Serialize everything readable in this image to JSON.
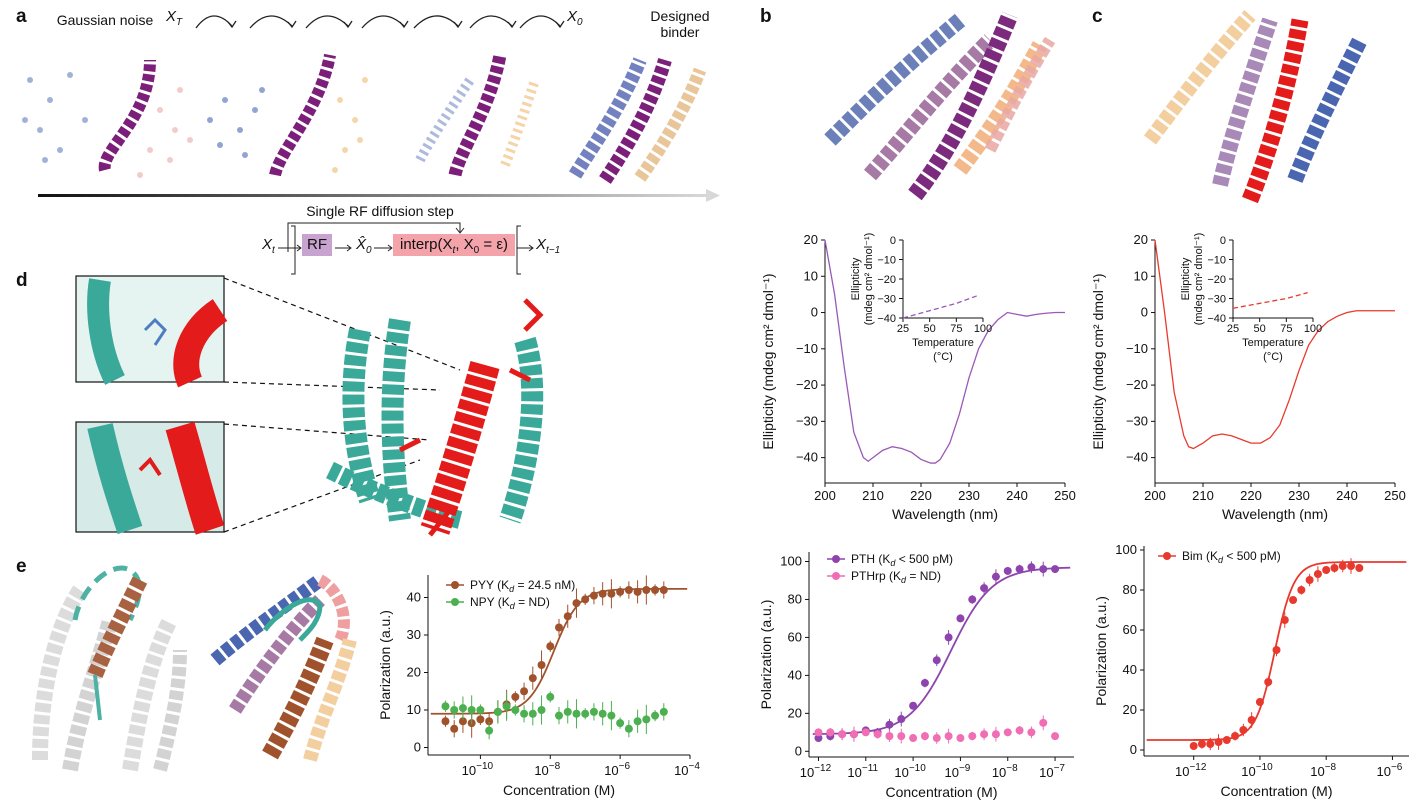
{
  "panels": {
    "a": "a",
    "b": "b",
    "c": "c",
    "d": "d",
    "e": "e"
  },
  "a": {
    "gaussian_noise": "Gaussian noise",
    "designed_binder": "Designed binder",
    "xt_label": "X",
    "xt_sub": "T",
    "x0_label": "X",
    "x0_sub": "0",
    "step_title": "Single RF diffusion step",
    "step_xt": "X",
    "step_xt_sub": "t",
    "rf_box": "RF",
    "x0hat": "X̂",
    "x0hat_sub": "0",
    "interp_box": "interp(X",
    "interp_sub": "t",
    "interp_rest": ", X",
    "interp_sub2": "0",
    "interp_end": " = ε)",
    "xt1": "X",
    "xt1_sub": "t−1",
    "colors": {
      "rf": "#c9a3cf",
      "interp": "#f4a3ab"
    }
  },
  "chart_data": [
    {
      "id": "cd_b",
      "type": "line",
      "title": "",
      "xlabel": "Wavelength (nm)",
      "ylabel": "Ellipticity (mdeg cm² dmol⁻¹)",
      "xlim": [
        200,
        250
      ],
      "ylim": [
        -47,
        20
      ],
      "xticks": [
        200,
        210,
        220,
        230,
        240,
        250
      ],
      "yticks": [
        20,
        10,
        0,
        -10,
        -20,
        -30,
        -40
      ],
      "color": "#9b59b6",
      "x": [
        200,
        202,
        204,
        206,
        208,
        209,
        210,
        212,
        214,
        216,
        218,
        220,
        222,
        223,
        224,
        226,
        228,
        230,
        232,
        234,
        236,
        238,
        240,
        242,
        244,
        246,
        248,
        250
      ],
      "y": [
        20,
        5,
        -15,
        -33,
        -40,
        -41,
        -40,
        -38,
        -37,
        -37.5,
        -38.5,
        -40.5,
        -41.5,
        -41.5,
        -40.5,
        -36,
        -28,
        -18,
        -10,
        -5,
        -2,
        0,
        -0.5,
        -1,
        -0.5,
        -0.2,
        0,
        0
      ]
    },
    {
      "id": "cd_b_inset",
      "type": "line",
      "title": "",
      "xlabel": "Temperature (°C)",
      "ylabel": "Ellipticity (mdeg cm² dmol⁻¹)",
      "xlim": [
        25,
        100
      ],
      "ylim": [
        -40,
        0
      ],
      "xticks": [
        25,
        50,
        75,
        100
      ],
      "yticks": [
        0,
        -10,
        -20,
        -30,
        -40
      ],
      "color": "#9b59b6",
      "x": [
        25,
        35,
        45,
        55,
        65,
        75,
        85,
        95
      ],
      "y": [
        -40,
        -38.5,
        -37,
        -35.5,
        -34,
        -32.5,
        -30.5,
        -28.5
      ]
    },
    {
      "id": "cd_c",
      "type": "line",
      "title": "",
      "xlabel": "Wavelength (nm)",
      "ylabel": "Ellipticity (mdeg cm² dmol⁻¹)",
      "xlim": [
        200,
        250
      ],
      "ylim": [
        -47,
        20
      ],
      "xticks": [
        200,
        210,
        220,
        230,
        240,
        250
      ],
      "yticks": [
        20,
        10,
        0,
        -10,
        -20,
        -30,
        -40
      ],
      "color": "#e8392e",
      "x": [
        200,
        202,
        204,
        206,
        207,
        208,
        210,
        212,
        214,
        216,
        218,
        220,
        222,
        224,
        226,
        228,
        230,
        232,
        234,
        236,
        238,
        240,
        242,
        244,
        246,
        248,
        250
      ],
      "y": [
        20,
        0,
        -22,
        -34,
        -37,
        -37.5,
        -36,
        -34,
        -33.5,
        -34,
        -35,
        -36,
        -36,
        -34.5,
        -31,
        -24,
        -16,
        -9,
        -5,
        -2.5,
        -1,
        0,
        0.5,
        0.5,
        0.5,
        0.5,
        0.5
      ]
    },
    {
      "id": "cd_c_inset",
      "type": "line",
      "title": "",
      "xlabel": "Temperature (°C)",
      "ylabel": "Ellipticity (mdeg cm² dmol⁻¹)",
      "xlim": [
        25,
        100
      ],
      "ylim": [
        -40,
        0
      ],
      "xticks": [
        25,
        50,
        75,
        100
      ],
      "yticks": [
        0,
        -10,
        -20,
        -30,
        -40
      ],
      "color": "#e8392e",
      "x": [
        25,
        35,
        45,
        55,
        65,
        75,
        85,
        95
      ],
      "y": [
        -35,
        -34,
        -33,
        -32,
        -31,
        -30,
        -28.5,
        -27
      ]
    },
    {
      "id": "fp_e",
      "type": "scatter",
      "title": "",
      "xlabel": "Concentration (M)",
      "ylabel": "Polarization (a.u.)",
      "xlim": [
        -11.5,
        -4
      ],
      "ylim": [
        -2,
        46
      ],
      "xticks_exp": [
        -10,
        -8,
        -6,
        -4
      ],
      "yticks": [
        0,
        10,
        20,
        30,
        40
      ],
      "series": [
        {
          "name": "PYY",
          "legend": "PYY (K",
          "legend_sub": "d",
          "legend_tail": " = 24.5 nM)",
          "color": "#a0522d",
          "x": [
            -11.0,
            -10.75,
            -10.5,
            -10.25,
            -10.0,
            -9.75,
            -9.5,
            -9.25,
            -9.0,
            -8.75,
            -8.5,
            -8.25,
            -8.0,
            -7.75,
            -7.5,
            -7.25,
            -7.0,
            -6.75,
            -6.5,
            -6.25,
            -6.0,
            -5.75,
            -5.5,
            -5.25,
            -5.0,
            -4.75
          ],
          "y": [
            7,
            5,
            7,
            6.5,
            7.5,
            7,
            9.5,
            11.5,
            13.5,
            15,
            18.5,
            22,
            27,
            32,
            35,
            38.5,
            39.5,
            40.5,
            41,
            41,
            41.5,
            42,
            41.5,
            42,
            42,
            42
          ],
          "fit": true,
          "fit_bottom": 9,
          "fit_top": 42.3,
          "fit_ec50": -7.9,
          "fit_hill": 1.2
        },
        {
          "name": "NPY",
          "legend": "NPY (K",
          "legend_sub": "d",
          "legend_tail": " = ND)",
          "color": "#4caf50",
          "x": [
            -11.0,
            -10.75,
            -10.5,
            -10.25,
            -10.0,
            -9.75,
            -9.5,
            -9.25,
            -9.0,
            -8.75,
            -8.5,
            -8.25,
            -8.0,
            -7.75,
            -7.5,
            -7.25,
            -7.0,
            -6.75,
            -6.5,
            -6.25,
            -6.0,
            -5.75,
            -5.5,
            -5.25,
            -5.0,
            -4.75
          ],
          "y": [
            11,
            10,
            10.5,
            10,
            10,
            4.5,
            9.5,
            11,
            10,
            9,
            9,
            10,
            13.5,
            8.5,
            9.5,
            9,
            9,
            9.5,
            9,
            8.5,
            6.5,
            5,
            7,
            7.5,
            8.5,
            9.5
          ],
          "fit": false
        }
      ]
    },
    {
      "id": "fp_pth",
      "type": "scatter",
      "title": "",
      "xlabel": "Concentration (M)",
      "ylabel": "Polarization (a.u.)",
      "xlim": [
        -12.2,
        -6.6
      ],
      "ylim": [
        -3,
        105
      ],
      "xticks_exp": [
        -12,
        -11,
        -10,
        -9,
        -8,
        -7
      ],
      "yticks": [
        0,
        20,
        40,
        60,
        80,
        100
      ],
      "series": [
        {
          "name": "PTH",
          "legend": "PTH (K",
          "legend_sub": "d",
          "legend_tail": " < 500 pM)",
          "color": "#8e44ad",
          "x": [
            -12.0,
            -11.75,
            -11.5,
            -11.25,
            -11.0,
            -10.75,
            -10.5,
            -10.25,
            -10.0,
            -9.75,
            -9.5,
            -9.25,
            -9.0,
            -8.75,
            -8.5,
            -8.25,
            -8.0,
            -7.75,
            -7.5,
            -7.25,
            -7.0
          ],
          "y": [
            7,
            8,
            9,
            9,
            11,
            10,
            14,
            17,
            24,
            36,
            48,
            60,
            70,
            80,
            86,
            92,
            95,
            96,
            97,
            96,
            96
          ],
          "fit": true,
          "fit_bottom": 9,
          "fit_top": 97,
          "fit_ec50": -9.2,
          "fit_hill": 1.0
        },
        {
          "name": "PTHrp",
          "legend": "PTHrp (K",
          "legend_sub": "d",
          "legend_tail": " = ND)",
          "color": "#f06eb4",
          "x": [
            -12.0,
            -11.75,
            -11.5,
            -11.25,
            -11.0,
            -10.75,
            -10.5,
            -10.25,
            -10.0,
            -9.75,
            -9.5,
            -9.25,
            -9.0,
            -8.75,
            -8.5,
            -8.25,
            -8.0,
            -7.75,
            -7.5,
            -7.25,
            -7.0
          ],
          "y": [
            10,
            10,
            9,
            9,
            10,
            9,
            8,
            8,
            7,
            8,
            7,
            8,
            7,
            8,
            9,
            9,
            10,
            11,
            10,
            15,
            8
          ],
          "fit": false
        }
      ]
    },
    {
      "id": "fp_bim",
      "type": "scatter",
      "title": "",
      "xlabel": "Concentration (M)",
      "ylabel": "Polarization (a.u.)",
      "xlim": [
        -13.5,
        -5.5
      ],
      "ylim": [
        -3,
        102
      ],
      "xticks_exp": [
        -12,
        -10,
        -8,
        -6
      ],
      "yticks": [
        0,
        20,
        40,
        60,
        80,
        100
      ],
      "series": [
        {
          "name": "Bim",
          "legend": "Bim (K",
          "legend_sub": "d",
          "legend_tail": " < 500 pM)",
          "color": "#e8392e",
          "x": [
            -12.0,
            -11.75,
            -11.5,
            -11.25,
            -11.0,
            -10.75,
            -10.5,
            -10.25,
            -10.0,
            -9.75,
            -9.5,
            -9.25,
            -9.0,
            -8.75,
            -8.5,
            -8.25,
            -8.0,
            -7.75,
            -7.5,
            -7.25,
            -7.0
          ],
          "y": [
            2,
            3,
            3,
            4,
            5,
            7,
            10,
            15,
            24,
            34,
            50,
            65,
            75,
            80,
            85,
            88,
            90,
            91,
            92,
            92,
            91
          ],
          "fit": true,
          "fit_bottom": 5,
          "fit_top": 94,
          "fit_ec50": -9.55,
          "fit_hill": 1.5
        }
      ]
    }
  ]
}
